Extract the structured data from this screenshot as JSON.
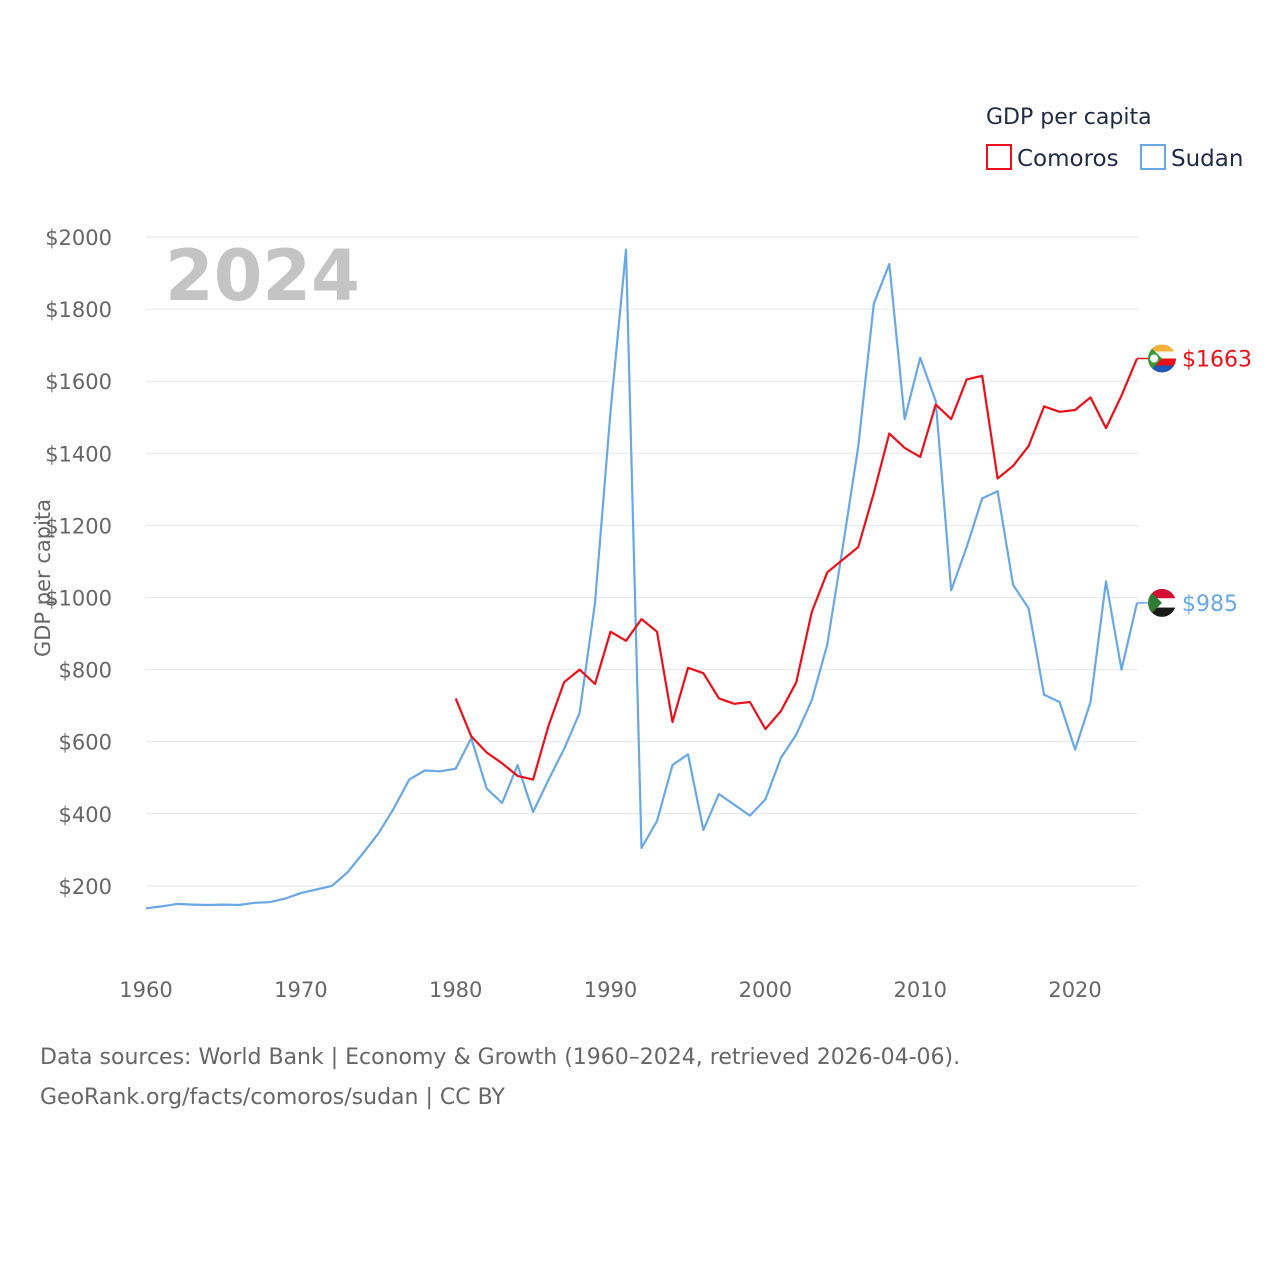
{
  "chart_data": {
    "type": "line",
    "title": "GDP per capita",
    "year_label": "2024",
    "ylabel": "GDP per capita",
    "xlabel": "",
    "xlim": [
      1960,
      2024
    ],
    "ylim": [
      0,
      2000
    ],
    "y_ticks": [
      200,
      400,
      600,
      800,
      1000,
      1200,
      1400,
      1600,
      1800,
      2000
    ],
    "y_tick_labels": [
      "$200",
      "$400",
      "$600",
      "$800",
      "$1000",
      "$1200",
      "$1400",
      "$1600",
      "$1800",
      "$2000"
    ],
    "x_ticks": [
      1960,
      1970,
      1980,
      1990,
      2000,
      2010,
      2020
    ],
    "x_tick_labels": [
      "1960",
      "1970",
      "1980",
      "1990",
      "2000",
      "2010",
      "2020"
    ],
    "grid": true,
    "legend": {
      "title": "GDP per capita",
      "position": "top-right"
    },
    "series": [
      {
        "name": "Comoros",
        "color": "#e8101a",
        "end_label": "$1663",
        "flag": "comoros-flag",
        "x": [
          1980,
          1981,
          1982,
          1983,
          1984,
          1985,
          1986,
          1987,
          1988,
          1989,
          1990,
          1991,
          1992,
          1993,
          1994,
          1995,
          1996,
          1997,
          1998,
          1999,
          2000,
          2001,
          2002,
          2003,
          2004,
          2005,
          2006,
          2007,
          2008,
          2009,
          2010,
          2011,
          2012,
          2013,
          2014,
          2015,
          2016,
          2017,
          2018,
          2019,
          2020,
          2021,
          2022,
          2023,
          2024
        ],
        "values": [
          720,
          615,
          570,
          540,
          505,
          495,
          645,
          765,
          800,
          760,
          905,
          880,
          940,
          905,
          655,
          805,
          790,
          720,
          705,
          710,
          635,
          685,
          765,
          960,
          1070,
          1105,
          1140,
          1290,
          1455,
          1415,
          1390,
          1535,
          1495,
          1605,
          1615,
          1330,
          1365,
          1420,
          1530,
          1515,
          1520,
          1555,
          1470,
          1560,
          1663
        ]
      },
      {
        "name": "Sudan",
        "color": "#6aa8e4",
        "end_label": "$985",
        "flag": "sudan-flag",
        "x": [
          1960,
          1961,
          1962,
          1963,
          1964,
          1965,
          1966,
          1967,
          1968,
          1969,
          1970,
          1971,
          1972,
          1973,
          1974,
          1975,
          1976,
          1977,
          1978,
          1979,
          1980,
          1981,
          1982,
          1983,
          1984,
          1985,
          1986,
          1987,
          1988,
          1989,
          1990,
          1991,
          1992,
          1993,
          1994,
          1995,
          1996,
          1997,
          1998,
          1999,
          2000,
          2001,
          2002,
          2003,
          2004,
          2005,
          2006,
          2007,
          2008,
          2009,
          2010,
          2011,
          2012,
          2013,
          2014,
          2015,
          2016,
          2017,
          2018,
          2019,
          2020,
          2021,
          2022,
          2023,
          2024
        ],
        "values": [
          138,
          143,
          150,
          148,
          147,
          148,
          147,
          153,
          155,
          165,
          180,
          190,
          200,
          237,
          290,
          345,
          415,
          495,
          520,
          518,
          525,
          610,
          470,
          430,
          535,
          405,
          495,
          580,
          680,
          985,
          1515,
          1965,
          305,
          380,
          535,
          565,
          355,
          455,
          425,
          395,
          440,
          555,
          620,
          715,
          870,
          1140,
          1420,
          1815,
          1925,
          1495,
          1665,
          1545,
          1020,
          1140,
          1275,
          1295,
          1035,
          970,
          730,
          710,
          578,
          710,
          1045,
          800,
          985
        ]
      }
    ]
  },
  "footer": {
    "line1": "Data sources: World Bank | Economy & Growth (1960–2024, retrieved 2026-04-06).",
    "line2": "GeoRank.org/facts/comoros/sudan | CC BY"
  }
}
